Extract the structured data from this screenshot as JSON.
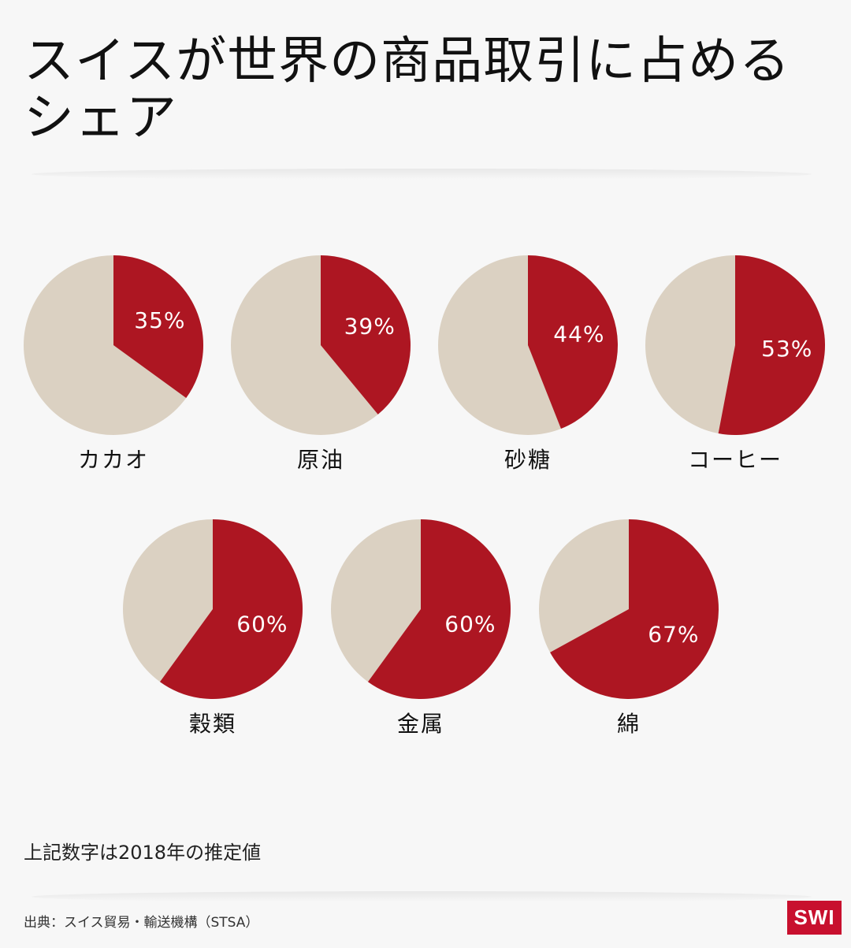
{
  "title": "スイスが世界の商品取引に占めるシェア",
  "note": "上記数字は2018年の推定値",
  "source": "出典：スイス貿易・輸送機構（STSA）",
  "logo": "SWI",
  "colors": {
    "share": "#ad1622",
    "rest": "#dbd1c2",
    "background": "#f7f7f7",
    "logo": "#c8102e"
  },
  "chart_data": {
    "type": "pie",
    "unit": "%",
    "categories": [
      "カカオ",
      "原油",
      "砂糖",
      "コーヒー",
      "穀類",
      "金属",
      "綿"
    ],
    "values": [
      35,
      39,
      44,
      53,
      60,
      60,
      67
    ],
    "labels": [
      "35%",
      "39%",
      "44%",
      "53%",
      "60%",
      "60%",
      "67%"
    ]
  }
}
